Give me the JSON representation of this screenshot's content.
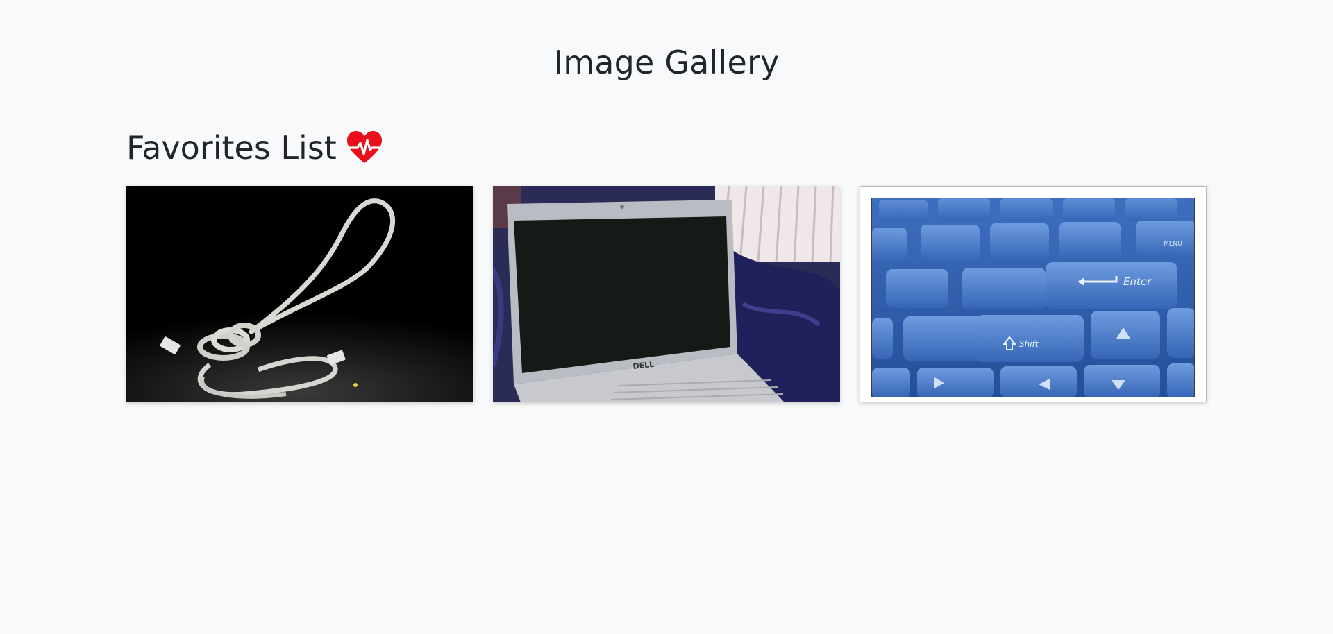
{
  "page": {
    "title": "Image Gallery"
  },
  "favorites": {
    "heading": "Favorites List",
    "heading_icon": "heartbeat-icon",
    "accent_color": "#e8101a"
  },
  "gallery": {
    "images": [
      {
        "name": "cable-noose-photo",
        "icon": "photo"
      },
      {
        "name": "laptop-photo",
        "icon": "photo",
        "brand_text": "DELL"
      },
      {
        "name": "keyboard-photo",
        "icon": "photo",
        "key_labels": [
          "Enter",
          "Shift",
          "MENU"
        ]
      }
    ]
  }
}
